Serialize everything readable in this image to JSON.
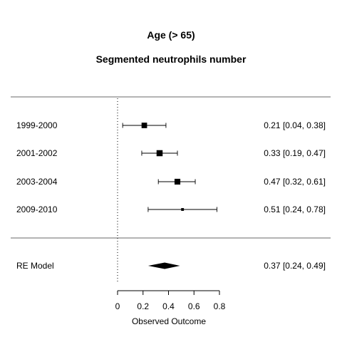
{
  "chart_data": {
    "type": "forest",
    "title": "Age (> 65)",
    "subtitle": "Segmented neutrophils number",
    "xlabel": "Observed Outcome",
    "xlim": [
      0,
      0.8
    ],
    "xticks": [
      "0",
      "0.2",
      "0.4",
      "0.6",
      "0.8"
    ],
    "xtick_values": [
      0,
      0.2,
      0.4,
      0.6,
      0.8
    ],
    "reference_line": 0,
    "studies": [
      {
        "label": "1999-2000",
        "estimate": 0.21,
        "ci_low": 0.04,
        "ci_high": 0.38,
        "text": "0.21 [0.04, 0.38]",
        "weight": 0.28
      },
      {
        "label": "2001-2002",
        "estimate": 0.33,
        "ci_low": 0.19,
        "ci_high": 0.47,
        "text": "0.33 [0.19, 0.47]",
        "weight": 0.34
      },
      {
        "label": "2003-2004",
        "estimate": 0.47,
        "ci_low": 0.32,
        "ci_high": 0.61,
        "text": "0.47 [0.32, 0.61]",
        "weight": 0.31
      },
      {
        "label": "2009-2010",
        "estimate": 0.51,
        "ci_low": 0.24,
        "ci_high": 0.78,
        "text": "0.51 [0.24, 0.78]",
        "weight": 0.07
      }
    ],
    "summary": {
      "label": "RE Model",
      "estimate": 0.37,
      "ci_low": 0.24,
      "ci_high": 0.49,
      "text": "0.37 [0.24, 0.49]"
    }
  }
}
